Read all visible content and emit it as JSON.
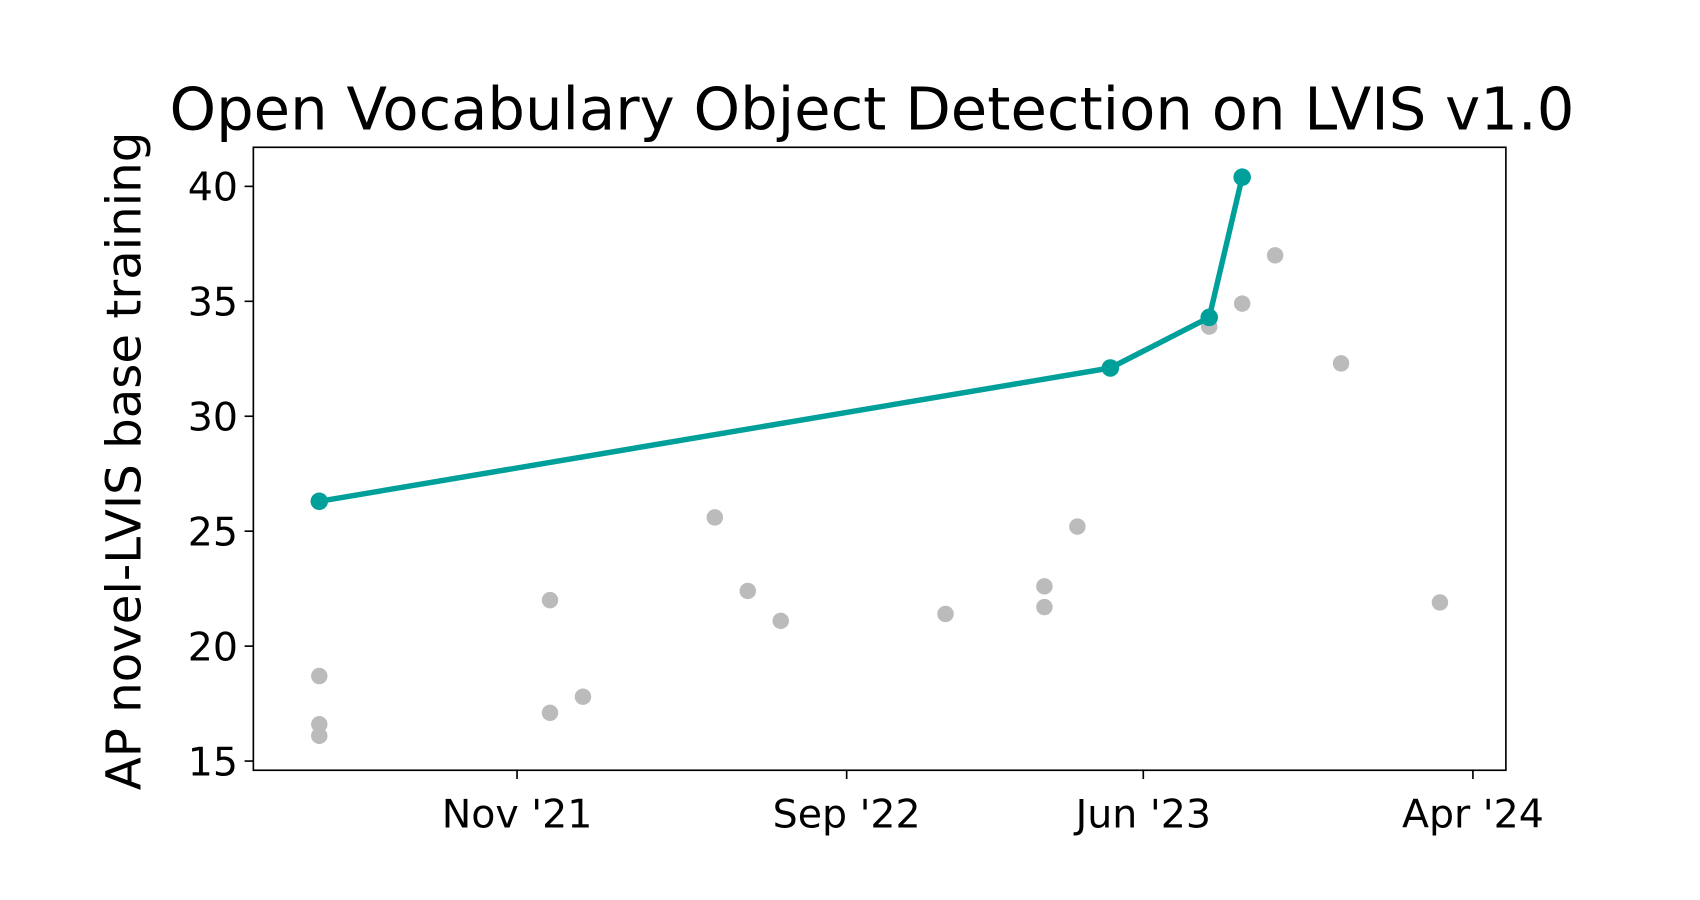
{
  "chart_data": {
    "type": "scatter",
    "title": "Open Vocabulary Object Detection on LVIS v1.0",
    "y_label": "AP novel-LVIS base training",
    "xlim": [
      "2021-03",
      "2024-05"
    ],
    "xticks": [
      {
        "value": "2021-11",
        "label": "Nov '21"
      },
      {
        "value": "2022-09",
        "label": "Sep '22"
      },
      {
        "value": "2023-06",
        "label": "Jun '23"
      },
      {
        "value": "2024-04",
        "label": "Apr '24"
      }
    ],
    "ylim": [
      14.6,
      41.7
    ],
    "yticks": [
      15,
      20,
      25,
      30,
      35,
      40
    ],
    "series": [
      {
        "color": "#bbbbbb",
        "line": false,
        "x": [
          "2021-05",
          "2021-05",
          "2021-05",
          "2021-12",
          "2021-12",
          "2022-01",
          "2022-05",
          "2022-06",
          "2022-07",
          "2022-12",
          "2023-03",
          "2023-03",
          "2023-04",
          "2023-08",
          "2023-09",
          "2023-10",
          "2023-12",
          "2024-03"
        ],
        "values": [
          18.7,
          16.6,
          16.1,
          22.0,
          17.1,
          17.8,
          25.6,
          22.4,
          21.1,
          21.4,
          22.6,
          21.7,
          25.2,
          33.9,
          34.9,
          37.0,
          32.3,
          21.9
        ]
      },
      {
        "color": "#00a09a",
        "line": true,
        "x": [
          "2021-05",
          "2023-05",
          "2023-08",
          "2023-09"
        ],
        "values": [
          26.3,
          32.1,
          34.3,
          40.4
        ]
      }
    ]
  }
}
